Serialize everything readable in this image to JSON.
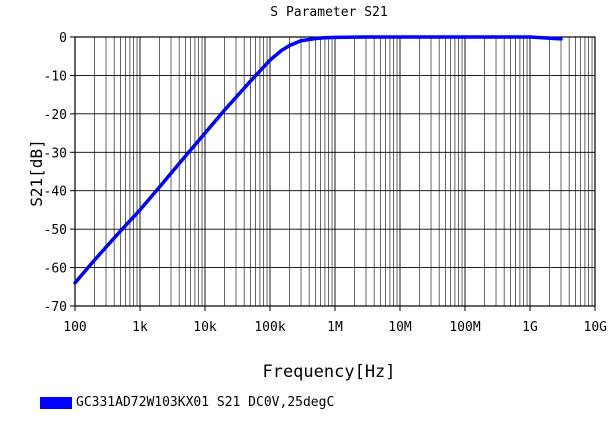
{
  "chart_data": {
    "type": "line",
    "title": "S Parameter S21",
    "xlabel": "Frequency[Hz]",
    "ylabel": "S21[dB]",
    "xscale": "log",
    "xlim": [
      100,
      10000000000
    ],
    "ylim": [
      -70,
      0
    ],
    "x_ticks": [
      100,
      1000,
      10000,
      100000,
      1000000,
      10000000,
      100000000,
      1000000000,
      10000000000
    ],
    "x_tick_labels": [
      "100",
      "1k",
      "10k",
      "100k",
      "1M",
      "10M",
      "100M",
      "1G",
      "10G"
    ],
    "y_ticks": [
      0,
      -10,
      -20,
      -30,
      -40,
      -50,
      -60,
      -70
    ],
    "y_tick_labels": [
      "0",
      "-10",
      "-20",
      "-30",
      "-40",
      "-50",
      "-60",
      "-70"
    ],
    "grid": true,
    "legend_placement": "bottom-left",
    "series": [
      {
        "name": "GC331AD72W103KX01 S21 DC0V,25degC",
        "color": "#0000ff",
        "x": [
          100,
          200,
          500,
          1000,
          2000,
          5000,
          10000,
          20000,
          50000,
          100000,
          150000,
          200000,
          300000,
          500000,
          700000,
          1000000,
          3000000,
          10000000,
          100000000,
          1000000000,
          3000000000
        ],
        "y": [
          -64,
          -58,
          -50.5,
          -45,
          -39,
          -31,
          -25,
          -19,
          -11.5,
          -6,
          -3.5,
          -2.2,
          -1.0,
          -0.4,
          -0.2,
          -0.1,
          0,
          0,
          0,
          0,
          -0.5
        ]
      }
    ]
  }
}
